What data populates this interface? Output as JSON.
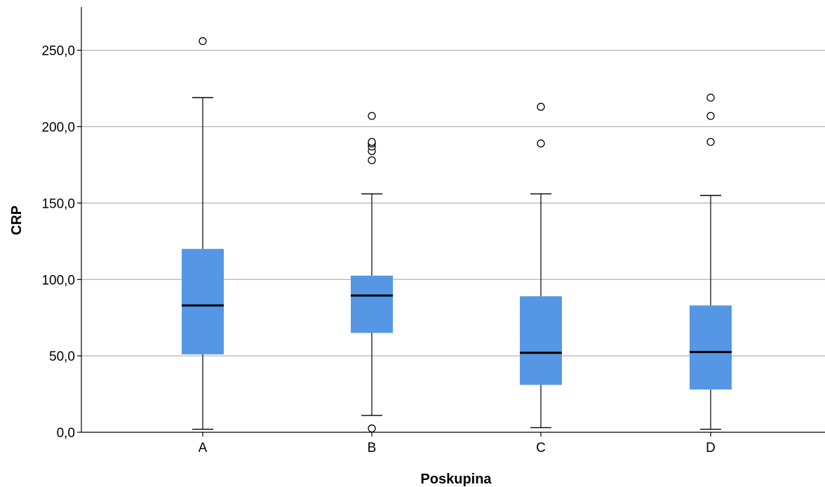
{
  "chart_data": {
    "type": "boxplot",
    "xlabel": "Poskupina",
    "ylabel": "CRP",
    "ylim": [
      0,
      275
    ],
    "yticks": [
      0,
      50,
      100,
      150,
      200,
      250
    ],
    "ytick_labels": [
      "0,0",
      "50,0",
      "100,0",
      "150,0",
      "200,0",
      "250,0"
    ],
    "grid": "horizontal",
    "box_color": "#5597e5",
    "categories": [
      "A",
      "B",
      "C",
      "D"
    ],
    "boxes": [
      {
        "category": "A",
        "whisker_low": 2,
        "q1": 51,
        "median": 83,
        "q3": 120,
        "whisker_high": 219,
        "outliers": [
          256
        ]
      },
      {
        "category": "B",
        "whisker_low": 11,
        "q1": 65,
        "median": 89.5,
        "q3": 102.5,
        "whisker_high": 156,
        "outliers": [
          2.5,
          178,
          184,
          187,
          189,
          190,
          207
        ]
      },
      {
        "category": "C",
        "whisker_low": 3,
        "q1": 31,
        "median": 52,
        "q3": 89,
        "whisker_high": 156,
        "outliers": [
          189,
          213
        ]
      },
      {
        "category": "D",
        "whisker_low": 2,
        "q1": 28,
        "median": 52.5,
        "q3": 83,
        "whisker_high": 155,
        "outliers": [
          190,
          207,
          219
        ]
      }
    ]
  }
}
